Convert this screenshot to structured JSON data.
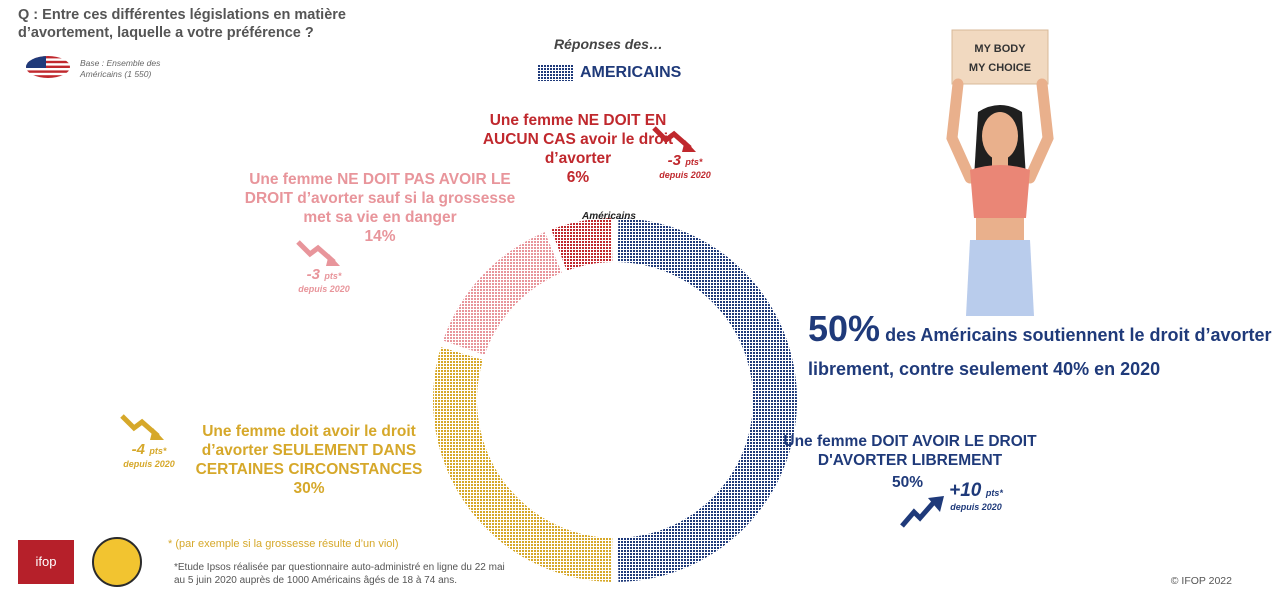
{
  "question": "Q : Entre ces différentes législations en matière d’avortement, laquelle a votre préférence ?",
  "base": "Base : Ensemble des Américains (1 550)",
  "responses_header": "Réponses des…",
  "legend_label": "AMERICAINS",
  "chart_center_label": "Américains",
  "labels": {
    "red": {
      "text": "Une femme NE DOIT EN AUCUN CAS avoir le droit d’avorter",
      "pct": "6%",
      "change": "-3",
      "pts": "pts*",
      "since": "depuis 2020"
    },
    "pink": {
      "text": "Une femme NE DOIT PAS AVOIR LE DROIT d’avorter sauf si la grossesse met sa vie en danger",
      "pct": "14%",
      "change": "-3",
      "pts": "pts*",
      "since": "depuis 2020"
    },
    "yellow": {
      "text": "Une femme doit avoir le droit d’avorter SEULEMENT DANS CERTAINES CIRCONSTANCES",
      "pct": "30%",
      "change": "-4",
      "pts": "pts*",
      "since": "depuis 2020"
    },
    "blue": {
      "text": "Une femme DOIT AVOIR LE DROIT D'AVORTER LIBREMENT",
      "pct": "50%",
      "change": "+10",
      "pts": "pts*",
      "since": "depuis 2020"
    }
  },
  "headline": {
    "big": "50%",
    "text": "des Américains soutiennent le droit d’avorter librement, contre seulement 40% en 2020"
  },
  "sign_text": "MY BODY MY CHOICE",
  "footnote": "* (par exemple si la grossesse résulte d’un viol)",
  "source": "*Etude Ipsos réalisée par questionnaire auto-administré en ligne du 22 mai au 5 juin 2020 auprès de 1000 Américains âgés de 18 à 74 ans.",
  "logo": "ifop",
  "copyright": "© IFOP 2022",
  "colors": {
    "blue": "#1f3a7a",
    "yellow": "#d6a82a",
    "pink": "#e8959b",
    "red": "#c0282d"
  },
  "chart_data": {
    "type": "pie",
    "variant": "donut",
    "categories": [
      "Une femme DOIT AVOIR LE DROIT D'AVORTER LIBREMENT",
      "Une femme doit avoir le droit d’avorter SEULEMENT DANS CERTAINES CIRCONSTANCES",
      "Une femme NE DOIT PAS AVOIR LE DROIT d’avorter sauf si la grossesse met sa vie en danger",
      "Une femme NE DOIT EN AUCUN CAS avoir le droit d’avorter"
    ],
    "values": [
      50,
      30,
      14,
      6
    ],
    "changes_since_2020": [
      10,
      -4,
      -3,
      -3
    ],
    "title": "Américains",
    "colors": [
      "#1f3a7a",
      "#d6a82a",
      "#e8959b",
      "#c0282d"
    ]
  }
}
